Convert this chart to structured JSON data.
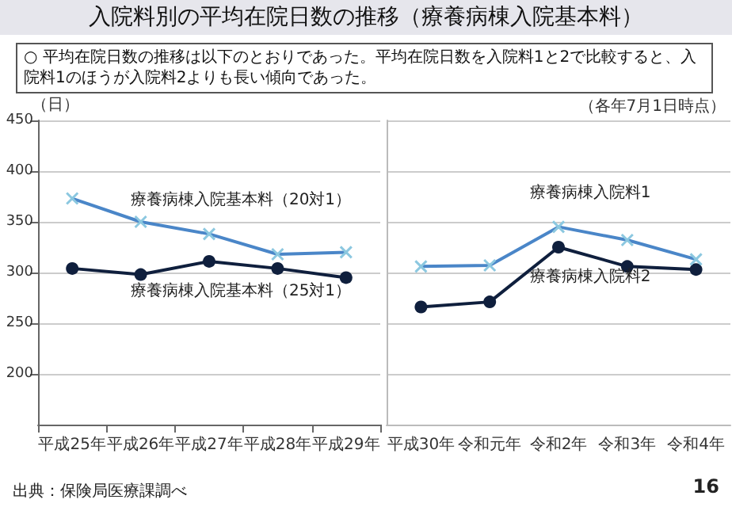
{
  "chart_data": [
    {
      "type": "line",
      "title": "入院料別の平均在院日数の推移（療養病棟入院基本料）",
      "subtitle": "○ 平均在院日数の推移は以下のとおりであった。平均在院日数を入院料1と2で比較すると、入院料1のほうが入院料2よりも長い傾向であった。",
      "ylabel": "（日）",
      "annotations": [
        "出典：保険局医療課調べ",
        "16"
      ],
      "categories": [
        "平成25年",
        "平成26年",
        "平成27年",
        "平成28年",
        "平成29年"
      ],
      "series": [
        {
          "name": "療養病棟入院基本料（20対1）",
          "color": "#4a86c8",
          "marker": "cross",
          "values": [
            373,
            350,
            338,
            318,
            320
          ]
        },
        {
          "name": "療養病棟入院基本料（25対1）",
          "color": "#0f1f3d",
          "marker": "circle",
          "values": [
            304,
            298,
            311,
            304,
            295
          ]
        }
      ],
      "ylim": [
        150,
        450
      ],
      "yticks": [
        200,
        250,
        300,
        350,
        400,
        450
      ],
      "grid": "y",
      "line_style": "solid"
    },
    {
      "type": "line",
      "annotations": [
        "（各年7月1日時点）"
      ],
      "categories": [
        "平成30年",
        "令和元年",
        "令和2年",
        "令和3年",
        "令和4年"
      ],
      "series": [
        {
          "name": "療養病棟入院料1",
          "color": "#4a86c8",
          "marker": "cross",
          "values": [
            306,
            307,
            345,
            332,
            313
          ]
        },
        {
          "name": "療養病棟入院料2",
          "color": "#0f1f3d",
          "marker": "circle",
          "values": [
            266,
            271,
            325,
            306,
            303
          ]
        }
      ],
      "ylim": [
        150,
        450
      ],
      "yticks": [
        200,
        250,
        300,
        350,
        400,
        450
      ],
      "grid": "y",
      "tick_labels": "x",
      "line_style": "solid"
    }
  ]
}
